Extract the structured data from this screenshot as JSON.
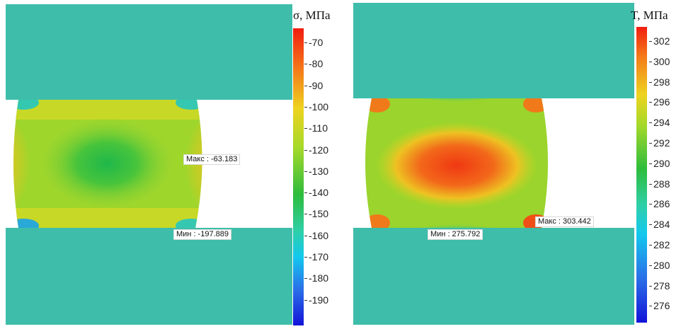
{
  "stress_panel": {
    "scale_title": "σ, МПа",
    "scale_ticks": [
      "-70",
      "-80",
      "-90",
      "-100",
      "-110",
      "-120",
      "-130",
      "-140",
      "-150",
      "-160",
      "-170",
      "-180",
      "-190"
    ],
    "scale_range": [
      -197.889,
      -63.183
    ],
    "max_probe": "Макс : -63.183",
    "min_probe": "Мин : -197.889"
  },
  "temperature_panel": {
    "scale_title": "T, МПа",
    "scale_ticks": [
      "302",
      "300",
      "298",
      "296",
      "294",
      "292",
      "290",
      "288",
      "286",
      "284",
      "282",
      "280",
      "278",
      "276"
    ],
    "scale_range": [
      275.792,
      303.442
    ],
    "max_probe": "Макс : 303.442",
    "min_probe": "Мин : 275.792"
  },
  "colors": {
    "die": "#3ebdaa",
    "scale_top": "#f21d0f",
    "scale_bottom": "#1313d8"
  }
}
